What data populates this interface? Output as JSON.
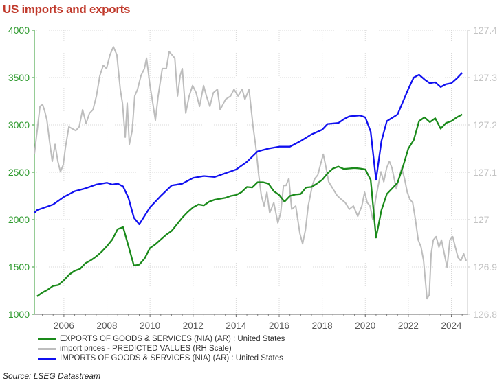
{
  "title": "US imports and exports",
  "source": "Source:  LSEG Datastream",
  "chart_data": {
    "type": "line",
    "title": "US imports and exports",
    "xlim": [
      2004.63,
      2024.75
    ],
    "ylim_left": [
      1000,
      4000
    ],
    "ylim_right": [
      126.8,
      127.4
    ],
    "x_ticks": [
      "2006",
      "2008",
      "2010",
      "2012",
      "2014",
      "2016",
      "2018",
      "2020",
      "2022",
      "2024"
    ],
    "y_ticks_left": [
      "1000",
      "1500",
      "2000",
      "2500",
      "3000",
      "3500",
      "4000"
    ],
    "y_ticks_right": [
      "126.8",
      "126.9",
      "127",
      "127.1",
      "127.2",
      "127.3",
      "127.4"
    ],
    "grid": true,
    "legend_placement": "bottom",
    "colors": {
      "exports": "#1a8a1a",
      "import_prices": "#bdbdbd",
      "imports": "#1010f0",
      "left_axis": "#2e9a2e",
      "right_axis": "#c4c4c4",
      "title": "#c0392b"
    },
    "series": [
      {
        "name": "EXPORTS OF GOODS & SERVICES (NIA) (AR) : United States",
        "axis": "left",
        "color": "#1a8a1a",
        "x": [
          2004.75,
          2005.0,
          2005.25,
          2005.5,
          2005.75,
          2006.0,
          2006.25,
          2006.5,
          2006.75,
          2007.0,
          2007.25,
          2007.5,
          2007.75,
          2008.0,
          2008.25,
          2008.5,
          2008.75,
          2009.0,
          2009.25,
          2009.5,
          2009.75,
          2010.0,
          2010.25,
          2010.5,
          2010.75,
          2011.0,
          2011.25,
          2011.5,
          2011.75,
          2012.0,
          2012.25,
          2012.5,
          2012.75,
          2013.0,
          2013.25,
          2013.5,
          2013.75,
          2014.0,
          2014.25,
          2014.5,
          2014.75,
          2015.0,
          2015.25,
          2015.5,
          2015.75,
          2016.0,
          2016.25,
          2016.5,
          2016.75,
          2017.0,
          2017.25,
          2017.5,
          2017.75,
          2018.0,
          2018.25,
          2018.5,
          2018.75,
          2019.0,
          2019.25,
          2019.5,
          2019.75,
          2020.0,
          2020.25,
          2020.5,
          2020.75,
          2021.0,
          2021.25,
          2021.5,
          2021.75,
          2022.0,
          2022.25,
          2022.5,
          2022.75,
          2023.0,
          2023.25,
          2023.5,
          2023.75,
          2024.0,
          2024.25,
          2024.5
        ],
        "values": [
          1190,
          1230,
          1260,
          1300,
          1310,
          1360,
          1420,
          1460,
          1480,
          1540,
          1570,
          1610,
          1660,
          1720,
          1790,
          1900,
          1920,
          1720,
          1515,
          1525,
          1590,
          1700,
          1740,
          1790,
          1840,
          1880,
          1950,
          2020,
          2080,
          2130,
          2160,
          2150,
          2190,
          2210,
          2220,
          2230,
          2250,
          2260,
          2290,
          2345,
          2340,
          2395,
          2395,
          2380,
          2300,
          2260,
          2190,
          2250,
          2265,
          2270,
          2340,
          2345,
          2380,
          2420,
          2490,
          2540,
          2560,
          2535,
          2540,
          2545,
          2540,
          2530,
          2420,
          1810,
          2100,
          2270,
          2330,
          2390,
          2560,
          2750,
          2840,
          3040,
          3080,
          3030,
          3070,
          2960,
          3020,
          3040,
          3080,
          3110
        ]
      },
      {
        "name": "import prices - PREDICTED VALUES (RH Scale)",
        "axis": "right",
        "color": "#bdbdbd",
        "x": [
          2004.63,
          2004.89,
          2005.01,
          2005.11,
          2005.21,
          2005.33,
          2005.46,
          2005.59,
          2005.72,
          2005.84,
          2005.97,
          2006.07,
          2006.23,
          2006.55,
          2006.71,
          2006.87,
          2007.03,
          2007.19,
          2007.35,
          2007.51,
          2007.67,
          2007.83,
          2007.98,
          2008.14,
          2008.3,
          2008.46,
          2008.62,
          2008.72,
          2008.85,
          2008.94,
          2009.04,
          2009.17,
          2009.29,
          2009.42,
          2009.58,
          2009.74,
          2009.84,
          2010.0,
          2010.13,
          2010.25,
          2010.38,
          2010.57,
          2010.76,
          2010.89,
          2011.02,
          2011.15,
          2011.28,
          2011.4,
          2011.5,
          2011.66,
          2011.82,
          2011.98,
          2012.14,
          2012.3,
          2012.49,
          2012.62,
          2012.78,
          2012.94,
          2013.13,
          2013.26,
          2013.51,
          2013.74,
          2013.9,
          2014.09,
          2014.28,
          2014.41,
          2014.6,
          2014.79,
          2014.92,
          2015.05,
          2015.17,
          2015.3,
          2015.43,
          2015.56,
          2015.75,
          2015.94,
          2016.07,
          2016.2,
          2016.32,
          2016.45,
          2016.58,
          2016.77,
          2016.96,
          2017.09,
          2017.22,
          2017.35,
          2017.54,
          2017.66,
          2017.79,
          2017.92,
          2018.05,
          2018.18,
          2018.3,
          2018.5,
          2018.69,
          2018.88,
          2019.07,
          2019.26,
          2019.45,
          2019.65,
          2019.84,
          2019.97,
          2020.09,
          2020.22,
          2020.35,
          2020.48,
          2020.6,
          2020.73,
          2020.86,
          2020.99,
          2021.12,
          2021.24,
          2021.37,
          2021.44,
          2021.56,
          2021.69,
          2021.82,
          2021.95,
          2022.07,
          2022.2,
          2022.33,
          2022.46,
          2022.59,
          2022.71,
          2022.78,
          2022.87,
          2022.97,
          2023.06,
          2023.16,
          2023.29,
          2023.42,
          2023.54,
          2023.67,
          2023.8,
          2023.93,
          2024.06,
          2024.18,
          2024.31,
          2024.44,
          2024.57,
          2024.69
        ],
        "values": [
          127.138,
          127.239,
          127.243,
          127.229,
          127.21,
          127.167,
          127.123,
          127.159,
          127.123,
          127.101,
          127.116,
          127.152,
          127.196,
          127.188,
          127.196,
          127.232,
          127.203,
          127.225,
          127.232,
          127.261,
          127.304,
          127.326,
          127.319,
          127.348,
          127.365,
          127.348,
          127.275,
          127.246,
          127.174,
          127.246,
          127.159,
          127.188,
          127.261,
          127.275,
          127.304,
          127.319,
          127.341,
          127.283,
          127.246,
          127.21,
          127.261,
          127.319,
          127.319,
          127.355,
          127.348,
          127.341,
          127.261,
          127.304,
          127.319,
          127.225,
          127.261,
          127.283,
          127.268,
          127.239,
          127.283,
          127.261,
          127.239,
          127.268,
          127.275,
          127.232,
          127.254,
          127.261,
          127.275,
          127.261,
          127.275,
          127.254,
          127.275,
          127.196,
          127.152,
          127.094,
          127.051,
          127.029,
          127.058,
          127.014,
          127.036,
          126.993,
          127.014,
          127.072,
          127.072,
          127.087,
          127.022,
          127.029,
          126.971,
          126.949,
          126.978,
          127.029,
          127.072,
          127.087,
          127.094,
          127.116,
          127.138,
          127.109,
          127.08,
          127.065,
          127.051,
          127.043,
          127.036,
          127.022,
          127.029,
          127.007,
          127.029,
          127.058,
          127.036,
          127.029,
          127.0,
          127.043,
          127.072,
          127.101,
          127.08,
          127.109,
          127.123,
          127.109,
          127.08,
          127.065,
          127.087,
          127.109,
          127.087,
          127.058,
          127.043,
          127.036,
          127.0,
          126.957,
          126.942,
          126.913,
          126.877,
          126.833,
          126.841,
          126.928,
          126.957,
          126.964,
          126.942,
          126.957,
          126.928,
          126.899,
          126.957,
          126.964,
          126.942,
          126.92,
          126.913,
          126.928,
          126.913
        ]
      },
      {
        "name": "IMPORTS OF GOODS & SERVICES (NIA) (AR) : United States",
        "axis": "left",
        "color": "#1010f0",
        "x": [
          2004.63,
          2004.75,
          2005.0,
          2005.5,
          2006.0,
          2006.5,
          2007.0,
          2007.5,
          2008.0,
          2008.25,
          2008.5,
          2008.75,
          2009.0,
          2009.25,
          2009.5,
          2010.0,
          2010.5,
          2011.0,
          2011.5,
          2012.0,
          2012.5,
          2013.0,
          2013.5,
          2014.0,
          2014.5,
          2015.0,
          2015.5,
          2016.0,
          2016.5,
          2017.0,
          2017.5,
          2018.0,
          2018.25,
          2018.75,
          2019.0,
          2019.25,
          2019.75,
          2020.0,
          2020.25,
          2020.5,
          2020.75,
          2021.0,
          2021.5,
          2022.0,
          2022.25,
          2022.5,
          2022.75,
          2023.0,
          2023.25,
          2023.5,
          2023.75,
          2024.0,
          2024.25,
          2024.5
        ],
        "values": [
          2070,
          2100,
          2120,
          2160,
          2240,
          2300,
          2330,
          2370,
          2390,
          2370,
          2380,
          2350,
          2230,
          2020,
          1950,
          2130,
          2250,
          2360,
          2380,
          2440,
          2460,
          2450,
          2490,
          2530,
          2610,
          2720,
          2750,
          2770,
          2770,
          2830,
          2900,
          2950,
          3010,
          3020,
          3060,
          3090,
          3100,
          3080,
          2930,
          2420,
          2830,
          3040,
          3110,
          3380,
          3500,
          3530,
          3480,
          3440,
          3450,
          3400,
          3430,
          3440,
          3490,
          3550
        ]
      }
    ]
  }
}
